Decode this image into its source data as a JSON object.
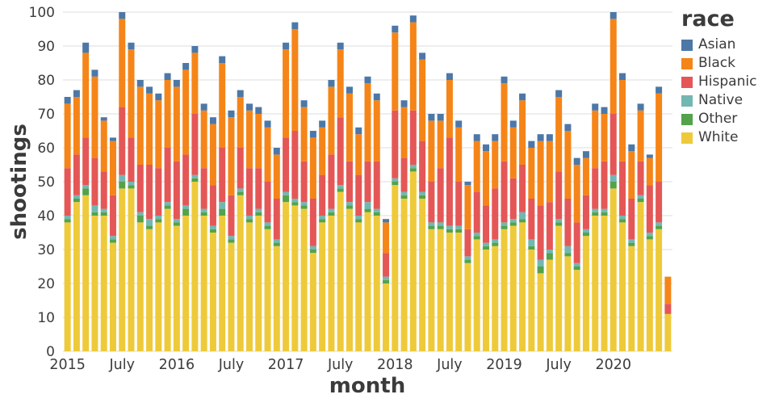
{
  "page": {
    "background": "#ffffff"
  },
  "chart_data": {
    "type": "bar",
    "stacked": true,
    "title": "",
    "xlabel": "month",
    "ylabel": "shootings",
    "legend_title": "race",
    "legend_position": "right",
    "grid": true,
    "grid_color": "#dddddd",
    "axis_text_color": "#3c3c3c",
    "ylim": [
      0,
      100
    ],
    "yticks": [
      0,
      10,
      20,
      30,
      40,
      50,
      60,
      70,
      80,
      90,
      100
    ],
    "x": [
      "2015-01",
      "2015-02",
      "2015-03",
      "2015-04",
      "2015-05",
      "2015-06",
      "2015-07",
      "2015-08",
      "2015-09",
      "2015-10",
      "2015-11",
      "2015-12",
      "2016-01",
      "2016-02",
      "2016-03",
      "2016-04",
      "2016-05",
      "2016-06",
      "2016-07",
      "2016-08",
      "2016-09",
      "2016-10",
      "2016-11",
      "2016-12",
      "2017-01",
      "2017-02",
      "2017-03",
      "2017-04",
      "2017-05",
      "2017-06",
      "2017-07",
      "2017-08",
      "2017-09",
      "2017-10",
      "2017-11",
      "2017-12",
      "2018-01",
      "2018-02",
      "2018-03",
      "2018-04",
      "2018-05",
      "2018-06",
      "2018-07",
      "2018-08",
      "2018-09",
      "2018-10",
      "2018-11",
      "2018-12",
      "2019-01",
      "2019-02",
      "2019-03",
      "2019-04",
      "2019-05",
      "2019-06",
      "2019-07",
      "2019-08",
      "2019-09",
      "2019-10",
      "2019-11",
      "2019-12",
      "2020-01",
      "2020-02",
      "2020-03",
      "2020-04",
      "2020-05",
      "2020-06",
      "2020-07"
    ],
    "x_ticks": [
      {
        "index": 0,
        "label": "2015"
      },
      {
        "index": 6,
        "label": "July"
      },
      {
        "index": 12,
        "label": "2016"
      },
      {
        "index": 18,
        "label": "July"
      },
      {
        "index": 24,
        "label": "2017"
      },
      {
        "index": 30,
        "label": "July"
      },
      {
        "index": 36,
        "label": "2018"
      },
      {
        "index": 42,
        "label": "July"
      },
      {
        "index": 48,
        "label": "2019"
      },
      {
        "index": 54,
        "label": "July"
      },
      {
        "index": 60,
        "label": "2020"
      }
    ],
    "stack_order_bottom_to_top": [
      "White",
      "Other",
      "Native",
      "Hispanic",
      "Black",
      "Asian"
    ],
    "series": [
      {
        "name": "Asian",
        "color": "#4c78a8",
        "values": [
          2,
          2,
          3,
          2,
          1,
          1,
          2,
          2,
          2,
          2,
          2,
          2,
          2,
          2,
          2,
          2,
          2,
          2,
          2,
          2,
          2,
          2,
          2,
          2,
          2,
          2,
          2,
          2,
          2,
          2,
          2,
          2,
          2,
          2,
          2,
          1,
          2,
          2,
          2,
          2,
          2,
          2,
          2,
          2,
          1,
          2,
          2,
          2,
          2,
          2,
          2,
          2,
          2,
          2,
          2,
          2,
          2,
          2,
          2,
          2,
          2,
          2,
          2,
          2,
          1,
          2,
          0
        ]
      },
      {
        "name": "Black",
        "color": "#f58518",
        "values": [
          19,
          17,
          25,
          24,
          15,
          16,
          26,
          26,
          23,
          21,
          20,
          20,
          22,
          25,
          18,
          17,
          18,
          25,
          23,
          15,
          17,
          16,
          16,
          13,
          26,
          30,
          16,
          18,
          14,
          20,
          20,
          20,
          12,
          23,
          18,
          9,
          23,
          15,
          26,
          24,
          18,
          14,
          17,
          16,
          13,
          15,
          16,
          14,
          23,
          15,
          19,
          15,
          19,
          18,
          22,
          20,
          17,
          11,
          17,
          14,
          28,
          24,
          14,
          15,
          8,
          26,
          8
        ]
      },
      {
        "name": "Hispanic",
        "color": "#e45756",
        "values": [
          14,
          12,
          14,
          14,
          11,
          12,
          20,
          13,
          14,
          16,
          14,
          16,
          17,
          15,
          18,
          12,
          12,
          16,
          12,
          12,
          14,
          12,
          12,
          12,
          16,
          20,
          12,
          14,
          12,
          16,
          20,
          12,
          12,
          12,
          14,
          7,
          20,
          10,
          16,
          15,
          12,
          16,
          26,
          13,
          8,
          12,
          11,
          15,
          18,
          12,
          14,
          12,
          16,
          14,
          14,
          14,
          12,
          10,
          12,
          14,
          18,
          16,
          12,
          10,
          14,
          12,
          3
        ]
      },
      {
        "name": "Native",
        "color": "#72b7b2",
        "values": [
          1,
          1,
          1,
          2,
          1,
          1,
          2,
          1,
          1,
          2,
          1,
          1,
          1,
          1,
          1,
          1,
          1,
          2,
          1,
          1,
          1,
          1,
          1,
          1,
          1,
          1,
          1,
          1,
          1,
          1,
          1,
          1,
          1,
          2,
          1,
          1,
          1,
          1,
          1,
          1,
          1,
          1,
          1,
          1,
          1,
          1,
          1,
          1,
          1,
          1,
          2,
          2,
          2,
          1,
          1,
          2,
          1,
          1,
          1,
          1,
          2,
          1,
          1,
          1,
          1,
          1,
          0
        ]
      },
      {
        "name": "Other",
        "color": "#54a24b",
        "values": [
          1,
          1,
          2,
          1,
          1,
          1,
          2,
          1,
          2,
          1,
          1,
          1,
          1,
          2,
          1,
          1,
          1,
          2,
          1,
          1,
          1,
          1,
          1,
          1,
          2,
          1,
          1,
          1,
          1,
          1,
          1,
          1,
          1,
          1,
          1,
          1,
          1,
          1,
          1,
          1,
          1,
          1,
          1,
          1,
          1,
          1,
          1,
          1,
          1,
          1,
          1,
          1,
          2,
          2,
          1,
          1,
          1,
          1,
          1,
          1,
          2,
          1,
          1,
          1,
          1,
          1,
          0
        ]
      },
      {
        "name": "White",
        "color": "#eeca3b",
        "values": [
          38,
          44,
          46,
          40,
          40,
          32,
          48,
          48,
          38,
          36,
          38,
          42,
          37,
          40,
          50,
          40,
          35,
          40,
          32,
          46,
          38,
          40,
          36,
          31,
          44,
          43,
          42,
          29,
          38,
          40,
          47,
          42,
          38,
          41,
          40,
          20,
          49,
          45,
          53,
          45,
          36,
          36,
          35,
          35,
          26,
          33,
          30,
          31,
          36,
          37,
          38,
          30,
          23,
          27,
          37,
          28,
          24,
          34,
          40,
          40,
          48,
          38,
          31,
          44,
          33,
          36,
          11
        ]
      }
    ]
  }
}
